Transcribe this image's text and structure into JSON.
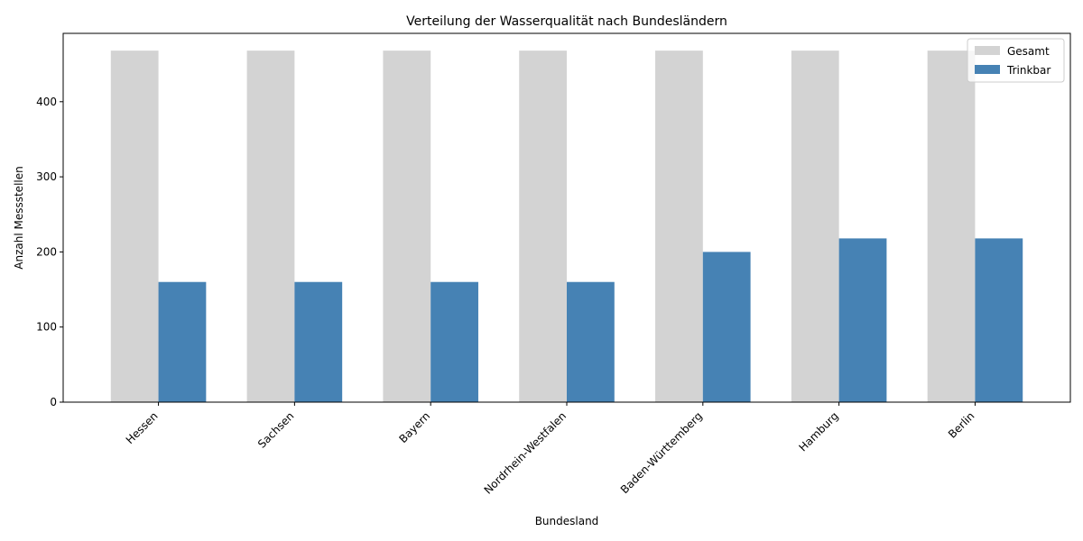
{
  "chart_data": {
    "type": "bar",
    "title": "Verteilung der Wasserqualität nach Bundesländern",
    "xlabel": "Bundesland",
    "ylabel": "Anzahl Messstellen",
    "categories": [
      "Hessen",
      "Sachsen",
      "Bayern",
      "Nordrhein-Westfalen",
      "Baden-Württemberg",
      "Hamburg",
      "Berlin"
    ],
    "series": [
      {
        "name": "Gesamt",
        "color": "#d3d3d3",
        "values": [
          468,
          468,
          468,
          468,
          468,
          468,
          468
        ]
      },
      {
        "name": "Trinkbar",
        "color": "#4682b4",
        "values": [
          160,
          160,
          160,
          160,
          200,
          218,
          218
        ]
      }
    ],
    "ylim": [
      0,
      491
    ],
    "yticks": [
      0,
      100,
      200,
      300,
      400
    ],
    "grid": false,
    "legend_position": "top-right"
  }
}
